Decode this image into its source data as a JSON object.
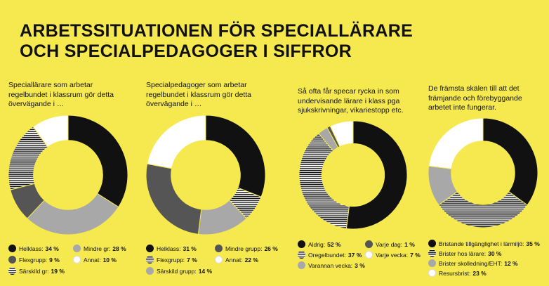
{
  "title_line1": "ARBETSSITUATIONEN FÖR SPECIALLÄRARE",
  "title_line2": "OCH SPECIALPEDAGOGER I SIFFROR",
  "colors": {
    "background": "#f5e94f",
    "black": "#111111",
    "dark_gray": "#555555",
    "light_gray": "#a8a8a8",
    "white": "#ffffff",
    "stripes": "stripes-black-white"
  },
  "chart_data": [
    {
      "type": "pie",
      "title": "Speciallärare som arbetar regelbundet i klassrum gör detta övervägande i …",
      "categories": [
        "Helklass:",
        "Flexgrupp:",
        "Särskild gr:",
        "Mindre gr:",
        "Annat:"
      ],
      "values": [
        34,
        9,
        19,
        28,
        10
      ],
      "value_labels": [
        "34 %",
        "9 %",
        "19 %",
        "28 %",
        "10 %"
      ],
      "slice_order": [
        0,
        3,
        1,
        2,
        4
      ],
      "fills": [
        "black",
        "dark_gray",
        "stripes",
        "light_gray",
        "white"
      ]
    },
    {
      "type": "pie",
      "title": "Specialpedagoger som arbetar regelbundet i klassrum gör detta övervägande i …",
      "categories": [
        "Helklass:",
        "Flexgrupp:",
        "Särskild grupp:",
        "Mindre grupp:",
        "Annat:"
      ],
      "values": [
        31,
        7,
        14,
        26,
        22
      ],
      "value_labels": [
        "31 %",
        "7 %",
        "14 %",
        "26 %",
        "22 %"
      ],
      "slice_order": [
        0,
        1,
        2,
        3,
        4
      ],
      "fills": [
        "black",
        "stripes",
        "light_gray",
        "dark_gray",
        "white"
      ]
    },
    {
      "type": "pie",
      "title": "Så ofta får specar rycka in som undervisande lärare i klass pga sjukskrivningar, vikariestopp etc.",
      "categories": [
        "Aldrig:",
        "Oregelbundet:",
        "Varannan vecka:",
        "Varje dag:",
        "Varje vecka:"
      ],
      "values": [
        52,
        37,
        3,
        1,
        7
      ],
      "value_labels": [
        "52 %",
        "37 %",
        "3 %",
        "1 %",
        "7 %"
      ],
      "slice_order": [
        0,
        1,
        2,
        3,
        4
      ],
      "fills": [
        "black",
        "stripes",
        "light_gray",
        "dark_gray",
        "white"
      ]
    },
    {
      "type": "pie",
      "title": "De främsta skälen till att det främjande och förebyggande arbetet inte fungerar.",
      "categories": [
        "Bristande tillgänglighet i lärmiljö:",
        "Brister hos lärare:",
        "Brister skolledning/EHT:",
        "Resursbrist:"
      ],
      "values": [
        35,
        30,
        12,
        23
      ],
      "value_labels": [
        "35 %",
        "30 %",
        "12 %",
        "23 %"
      ],
      "slice_order": [
        0,
        1,
        2,
        3
      ],
      "fills": [
        "black",
        "stripes",
        "light_gray",
        "white"
      ]
    }
  ]
}
